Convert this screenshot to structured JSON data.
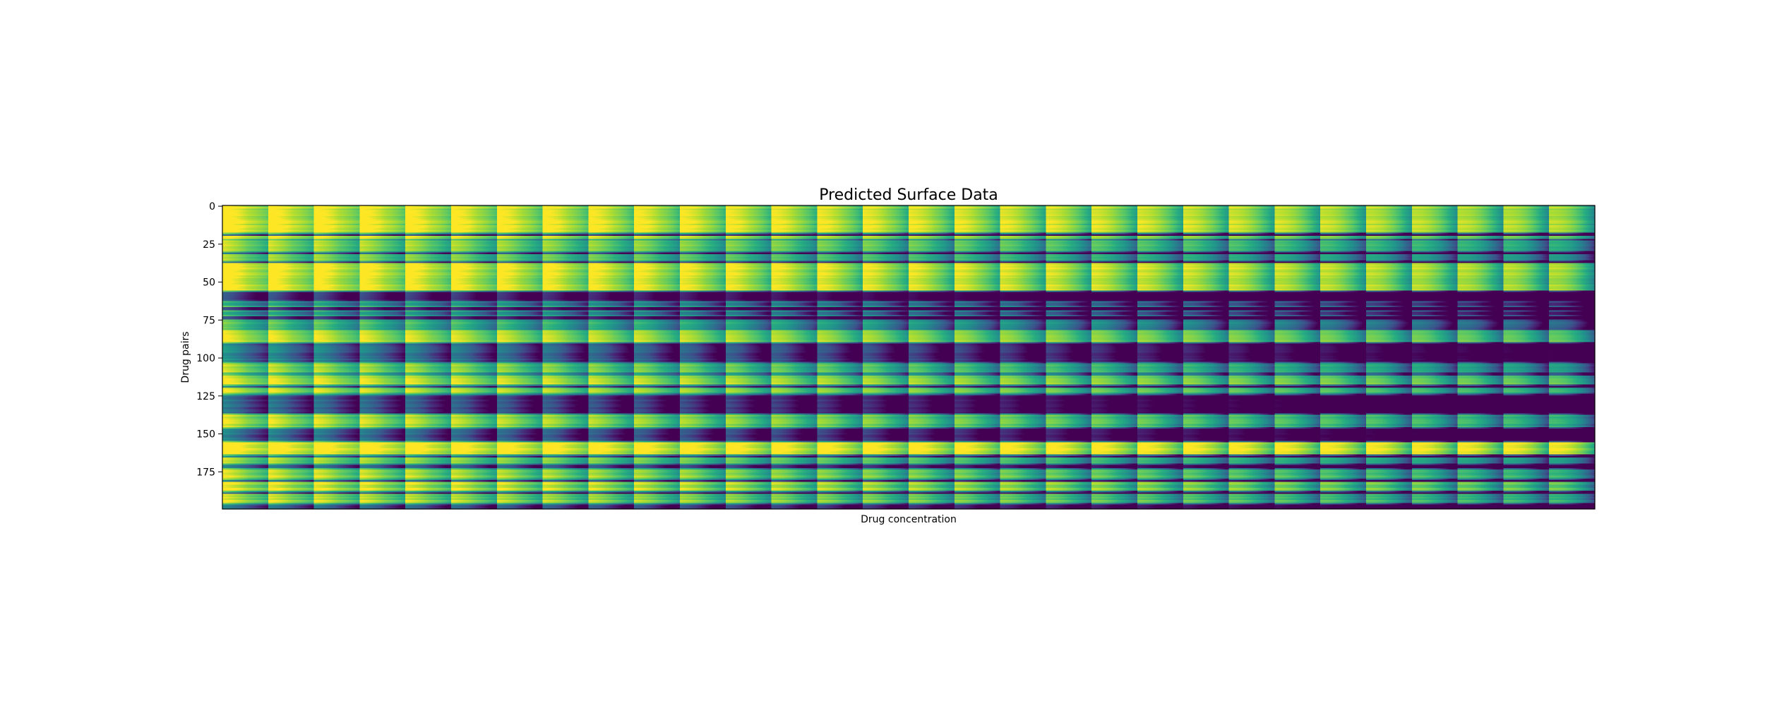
{
  "chart_data": {
    "type": "heatmap",
    "title": "Predicted Surface Data",
    "xlabel": "Drug concentration",
    "ylabel": "Drug pairs",
    "y_ticks": [
      0,
      25,
      50,
      75,
      100,
      125,
      150,
      175
    ],
    "x_ticks": [],
    "ylim": [
      0,
      200
    ],
    "n_rows": 200,
    "n_panels": 30,
    "colormap": "viridis",
    "value_range": [
      0,
      1
    ],
    "yellow_rows": [
      [
        0,
        18,
        0.95
      ],
      [
        20,
        22,
        0.9
      ],
      [
        23,
        30,
        0.85
      ],
      [
        32,
        36,
        0.8
      ],
      [
        38,
        56,
        0.95
      ],
      [
        64,
        66,
        0.55
      ],
      [
        70,
        72,
        0.5
      ],
      [
        76,
        80,
        0.7
      ],
      [
        82,
        90,
        0.9
      ],
      [
        104,
        110,
        0.8
      ],
      [
        112,
        118,
        0.9
      ],
      [
        120,
        124,
        0.85
      ],
      [
        138,
        146,
        0.85
      ],
      [
        156,
        164,
        1.0
      ],
      [
        166,
        170,
        0.8
      ],
      [
        174,
        180,
        0.85
      ],
      [
        182,
        188,
        0.9
      ],
      [
        190,
        196,
        0.85
      ]
    ],
    "dark_rows": [
      [
        19,
        20,
        0.25
      ],
      [
        31,
        32,
        0.3
      ],
      [
        37,
        38,
        0.25
      ],
      [
        57,
        63,
        0.2
      ],
      [
        67,
        69,
        0.15
      ],
      [
        73,
        75,
        0.2
      ],
      [
        91,
        103,
        0.4
      ],
      [
        119,
        120,
        0.3
      ],
      [
        125,
        137,
        0.3
      ],
      [
        147,
        155,
        0.35
      ],
      [
        165,
        166,
        0.4
      ],
      [
        171,
        173,
        0.3
      ],
      [
        181,
        182,
        0.35
      ],
      [
        189,
        190,
        0.3
      ],
      [
        197,
        200,
        0.35
      ]
    ]
  },
  "colors": {
    "viridis_dark": "#440154",
    "viridis_mid": "#21918c",
    "viridis_light": "#fde725",
    "axis": "#000000",
    "background": "#ffffff"
  }
}
